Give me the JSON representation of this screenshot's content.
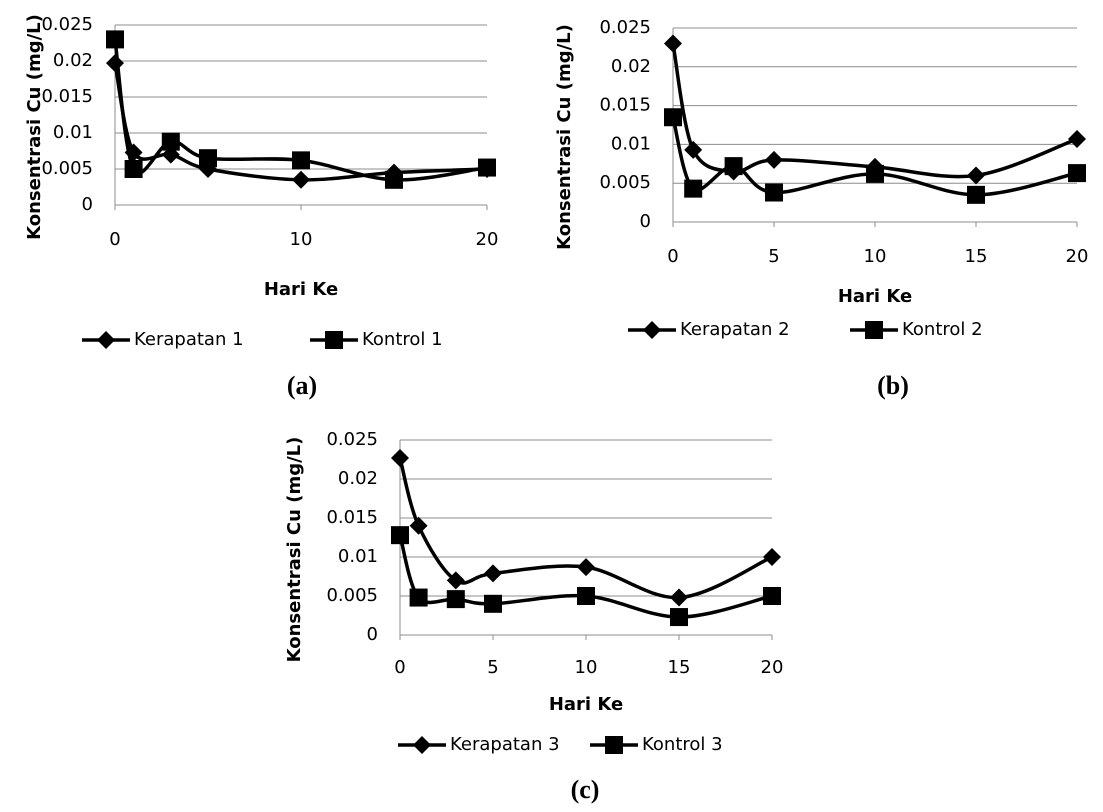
{
  "chart_data": [
    {
      "type": "line",
      "panel_label": "(a)",
      "x_label": "Hari Ke",
      "y_label": "Konsentrasi Cu (mg/L)",
      "x": [
        0,
        1,
        3,
        5,
        10,
        15,
        20
      ],
      "xlim": [
        0,
        20
      ],
      "xticks": [
        0,
        10,
        20
      ],
      "ylim": [
        0,
        0.025
      ],
      "yticks": [
        0,
        0.005,
        0.01,
        0.015,
        0.02,
        0.025
      ],
      "grid": true,
      "smooth": true,
      "series": [
        {
          "name": "Kerapatan 1",
          "color": "#000000",
          "marker": "diamond",
          "values": [
            0.0197,
            0.0073,
            0.007,
            0.005,
            0.0035,
            0.0045,
            0.005
          ]
        },
        {
          "name": "Kontrol 1",
          "color": "#000000",
          "marker": "square",
          "values": [
            0.023,
            0.005,
            0.0088,
            0.0065,
            0.0062,
            0.0035,
            0.0052
          ]
        }
      ]
    },
    {
      "type": "line",
      "panel_label": "(b)",
      "x_label": "Hari Ke",
      "y_label": "Konsentrasi Cu (mg/L)",
      "x": [
        0,
        1,
        3,
        5,
        10,
        15,
        20
      ],
      "xlim": [
        0,
        20
      ],
      "xticks": [
        0,
        5,
        10,
        15,
        20
      ],
      "ylim": [
        0,
        0.025
      ],
      "yticks": [
        0,
        0.005,
        0.01,
        0.015,
        0.02,
        0.025
      ],
      "grid": true,
      "smooth": true,
      "series": [
        {
          "name": "Kerapatan 2",
          "color": "#000000",
          "marker": "diamond",
          "values": [
            0.023,
            0.0093,
            0.0065,
            0.008,
            0.0071,
            0.006,
            0.0107
          ]
        },
        {
          "name": "Kontrol 2",
          "color": "#000000",
          "marker": "square",
          "values": [
            0.0135,
            0.0043,
            0.0072,
            0.0038,
            0.0062,
            0.0035,
            0.0063
          ]
        }
      ]
    },
    {
      "type": "line",
      "panel_label": "(c)",
      "x_label": "Hari Ke",
      "y_label": "Konsentrasi Cu (mg/L)",
      "x": [
        0,
        1,
        3,
        5,
        10,
        15,
        20
      ],
      "xlim": [
        0,
        20
      ],
      "xticks": [
        0,
        5,
        10,
        15,
        20
      ],
      "ylim": [
        0,
        0.025
      ],
      "yticks": [
        0,
        0.005,
        0.01,
        0.015,
        0.02,
        0.025
      ],
      "grid": true,
      "smooth": true,
      "series": [
        {
          "name": "Kerapatan 3",
          "color": "#000000",
          "marker": "diamond",
          "values": [
            0.0227,
            0.014,
            0.007,
            0.0079,
            0.0087,
            0.0048,
            0.01
          ]
        },
        {
          "name": "Kontrol 3",
          "color": "#000000",
          "marker": "square",
          "values": [
            0.0128,
            0.0048,
            0.0046,
            0.004,
            0.005,
            0.0023,
            0.005
          ]
        }
      ]
    }
  ]
}
